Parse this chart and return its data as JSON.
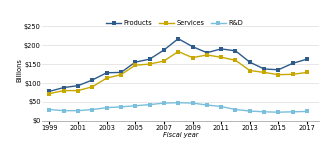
{
  "years": [
    1999,
    2000,
    2001,
    2002,
    2003,
    2004,
    2005,
    2006,
    2007,
    2008,
    2009,
    2010,
    2011,
    2012,
    2013,
    2014,
    2015,
    2016,
    2017
  ],
  "products": [
    78,
    88,
    93,
    108,
    127,
    128,
    155,
    163,
    187,
    217,
    196,
    180,
    190,
    185,
    155,
    137,
    135,
    152,
    163
  ],
  "services": [
    72,
    80,
    80,
    90,
    113,
    122,
    147,
    150,
    158,
    183,
    167,
    174,
    168,
    160,
    133,
    128,
    122,
    123,
    128
  ],
  "rd": [
    30,
    27,
    27,
    30,
    35,
    37,
    40,
    43,
    47,
    48,
    47,
    42,
    38,
    30,
    26,
    24,
    23,
    24,
    25
  ],
  "products_color": "#2E5B8A",
  "services_color": "#C8A800",
  "rd_color": "#7ABFDC",
  "background_color": "#FFFFFF",
  "ylabel": "Billions",
  "xlabel": "Fiscal year",
  "yticks": [
    0,
    50,
    100,
    150,
    200,
    250
  ],
  "ytick_labels": [
    "$0",
    "$50",
    "$100",
    "$150",
    "$200",
    "$250"
  ],
  "xtick_years": [
    1999,
    2001,
    2003,
    2005,
    2007,
    2009,
    2011,
    2013,
    2015,
    2017
  ],
  "legend_labels": [
    "Products",
    "Services",
    "R&D"
  ],
  "ylim": [
    0,
    270
  ]
}
